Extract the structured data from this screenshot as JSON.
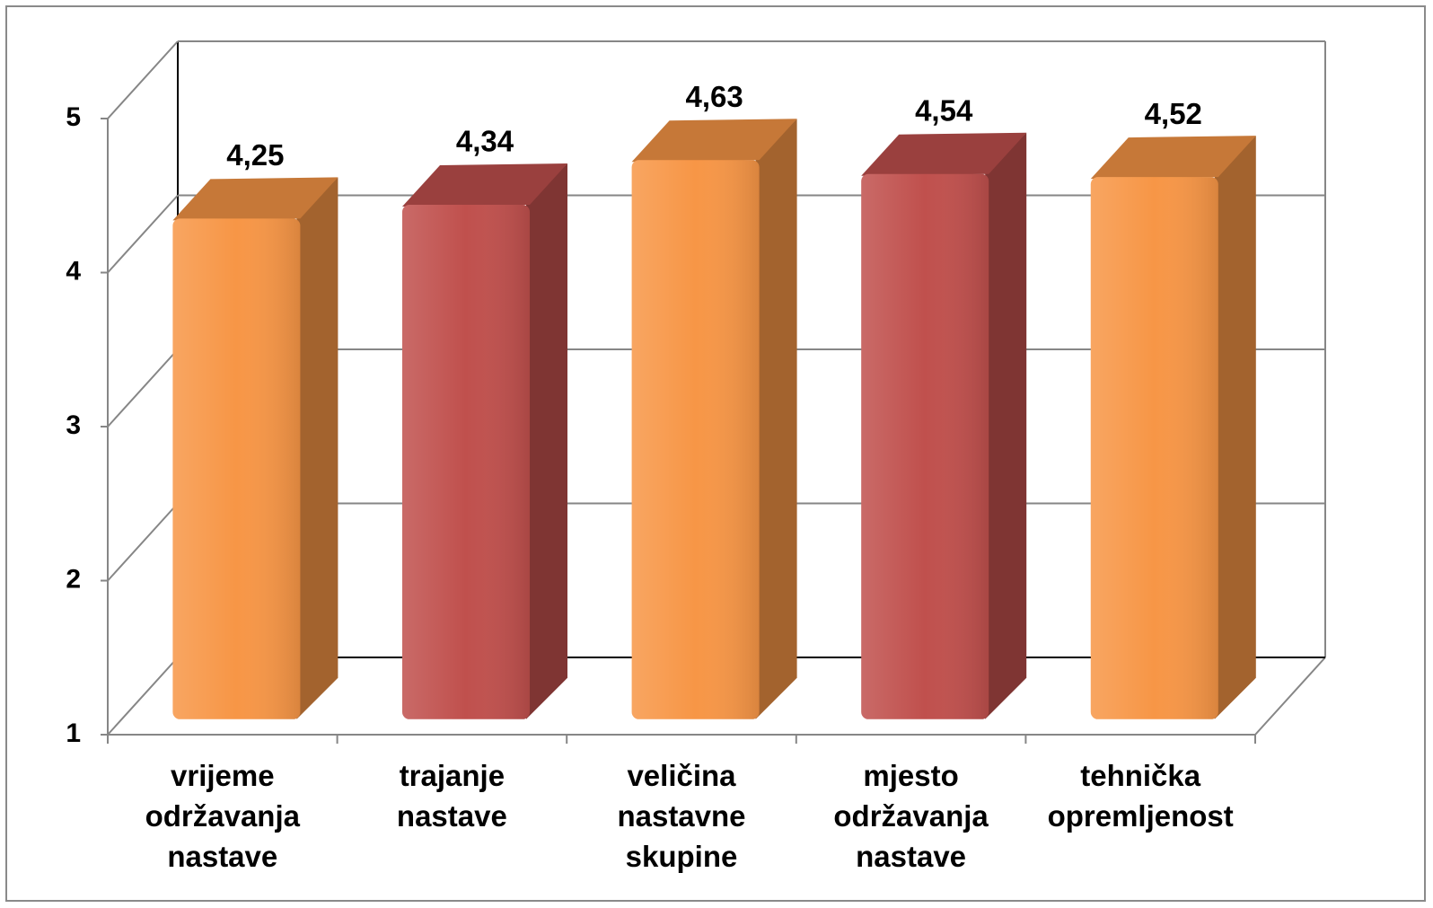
{
  "chart_data": {
    "type": "bar3d",
    "categories": [
      "vrijeme održavanja nastave",
      "trajanje nastave",
      "veličina nastavne skupine",
      "mjesto održavanja nastave",
      "tehnička opremljenost"
    ],
    "values": [
      4.25,
      4.34,
      4.63,
      4.54,
      4.52
    ],
    "value_labels": [
      "4,25",
      "4,34",
      "4,63",
      "4,54",
      "4,52"
    ],
    "colors": [
      "#f79646",
      "#c0504d",
      "#f79646",
      "#c0504d",
      "#f79646"
    ],
    "ylim": [
      1,
      5
    ],
    "yticks": [
      1,
      2,
      3,
      4,
      5
    ],
    "grid": true
  }
}
